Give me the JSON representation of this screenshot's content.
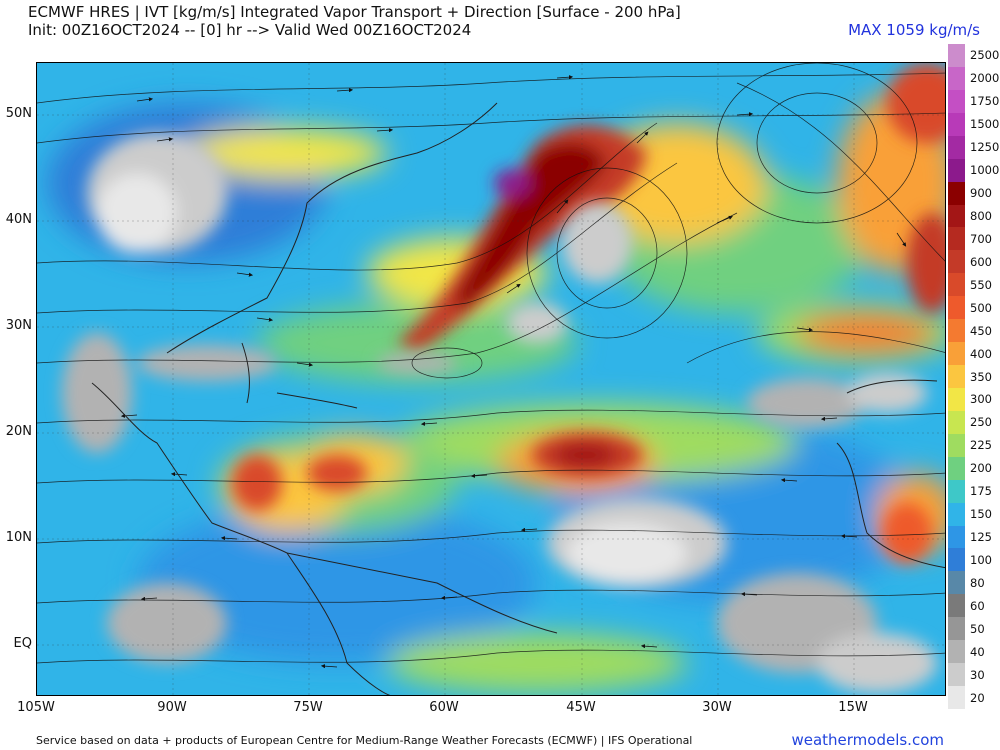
{
  "header": {
    "title_line1": "ECMWF HRES | IVT [kg/m/s] Integrated Vapor Transport + Direction [Surface - 200 hPa]",
    "title_line2": "Init: 00Z16OCT2024 -- [0] hr --> Valid Wed 00Z16OCT2024",
    "max_label": "MAX 1059 kg/m/s"
  },
  "map": {
    "lat_labels": [
      "50N",
      "40N",
      "30N",
      "20N",
      "10N",
      "EQ"
    ],
    "lon_labels": [
      "105W",
      "90W",
      "75W",
      "60W",
      "45W",
      "30W",
      "15W"
    ]
  },
  "colorbar": {
    "levels": [
      {
        "label": "2500",
        "color": "#cc8ccc"
      },
      {
        "label": "2000",
        "color": "#c866c8"
      },
      {
        "label": "1750",
        "color": "#c44fc4"
      },
      {
        "label": "1500",
        "color": "#b83ab8"
      },
      {
        "label": "1250",
        "color": "#a32aa3"
      },
      {
        "label": "1000",
        "color": "#8c1a8c"
      },
      {
        "label": "900",
        "color": "#8b0000"
      },
      {
        "label": "800",
        "color": "#a31616"
      },
      {
        "label": "700",
        "color": "#b52a20"
      },
      {
        "label": "600",
        "color": "#c43a28"
      },
      {
        "label": "550",
        "color": "#d94a2a"
      },
      {
        "label": "500",
        "color": "#ee5a2c"
      },
      {
        "label": "450",
        "color": "#f47a30"
      },
      {
        "label": "400",
        "color": "#f9a038"
      },
      {
        "label": "350",
        "color": "#fbc640"
      },
      {
        "label": "300",
        "color": "#f2e646"
      },
      {
        "label": "250",
        "color": "#c8e650"
      },
      {
        "label": "225",
        "color": "#9fdc60"
      },
      {
        "label": "200",
        "color": "#6fd080"
      },
      {
        "label": "175",
        "color": "#3ec8c8"
      },
      {
        "label": "150",
        "color": "#30b4e8"
      },
      {
        "label": "125",
        "color": "#2e96e6"
      },
      {
        "label": "100",
        "color": "#2f7ed8"
      },
      {
        "label": "80",
        "color": "#5888a8"
      },
      {
        "label": "60",
        "color": "#7a7a7a"
      },
      {
        "label": "50",
        "color": "#969696"
      },
      {
        "label": "40",
        "color": "#b2b2b2"
      },
      {
        "label": "30",
        "color": "#cccccc"
      },
      {
        "label": "20",
        "color": "#e8e8e8"
      }
    ]
  },
  "footer": {
    "credit": "Service based on data + products of European Centre for Medium-Range Weather Forecasts (ECMWF) | IFS Operational",
    "brand": "weathermodels.com"
  }
}
